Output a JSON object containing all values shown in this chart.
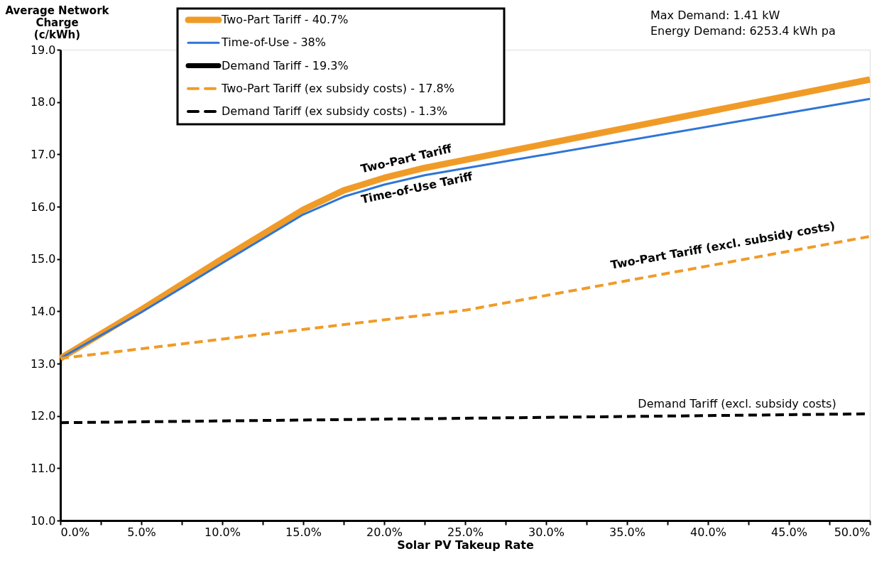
{
  "chart_data": {
    "type": "line",
    "xlabel": "Solar PV Takeup Rate",
    "ylabel": "Average Network Charge (c/kWh)",
    "xlim": [
      0,
      50
    ],
    "ylim": [
      10,
      19
    ],
    "xticks": [
      {
        "value": 0,
        "label": "0.0%"
      },
      {
        "value": 2.5,
        "label": null
      },
      {
        "value": 5,
        "label": "5.0%"
      },
      {
        "value": 7.5,
        "label": null
      },
      {
        "value": 10,
        "label": "10.0%"
      },
      {
        "value": 12.5,
        "label": null
      },
      {
        "value": 15,
        "label": "15.0%"
      },
      {
        "value": 17.5,
        "label": null
      },
      {
        "value": 20,
        "label": "20.0%"
      },
      {
        "value": 22.5,
        "label": null
      },
      {
        "value": 25,
        "label": "25.0%"
      },
      {
        "value": 27.5,
        "label": null
      },
      {
        "value": 30,
        "label": "30.0%"
      },
      {
        "value": 32.5,
        "label": null
      },
      {
        "value": 35,
        "label": "35.0%"
      },
      {
        "value": 37.5,
        "label": null
      },
      {
        "value": 40,
        "label": "40.0%"
      },
      {
        "value": 42.5,
        "label": null
      },
      {
        "value": 45,
        "label": "45.0%"
      },
      {
        "value": 47.5,
        "label": null
      },
      {
        "value": 50,
        "label": "50.0%"
      }
    ],
    "yticks": [
      {
        "value": 10,
        "label": "10.0"
      },
      {
        "value": 11,
        "label": "11.0"
      },
      {
        "value": 12,
        "label": "12.0"
      },
      {
        "value": 13,
        "label": "13.0"
      },
      {
        "value": 14,
        "label": "14.0"
      },
      {
        "value": 15,
        "label": "15.0"
      },
      {
        "value": 16,
        "label": "16.0"
      },
      {
        "value": 17,
        "label": "17.0"
      },
      {
        "value": 18,
        "label": "18.0"
      },
      {
        "value": 19,
        "label": "19.0"
      }
    ],
    "grid": false,
    "legend": "top",
    "marker": "none",
    "series": [
      {
        "name": "Two-Part Tariff - 40.7%",
        "color": "#f09b28",
        "line_style": "solid",
        "x": [
          0,
          5,
          10,
          15,
          17.5,
          20,
          22.5,
          50
        ],
        "values": [
          13.1,
          14.03,
          15.0,
          15.94,
          16.31,
          16.55,
          16.74,
          18.43
        ]
      },
      {
        "name": "Time-of-Use - 38%",
        "color": "#2e75d6",
        "line_style": "solid",
        "x": [
          0,
          5,
          10,
          15,
          17.5,
          20,
          22.5,
          50
        ],
        "values": [
          13.1,
          13.98,
          14.92,
          15.85,
          16.19,
          16.42,
          16.6,
          18.06
        ]
      },
      {
        "name": "Demand Tariff - 19.3%",
        "color": "#000000",
        "line_style": "solid"
      },
      {
        "name": "Two-Part Tariff (ex subsidy costs) - 17.8%",
        "color": "#f09b28",
        "line_style": "dashed",
        "x": [
          0,
          25,
          50
        ],
        "values": [
          13.1,
          14.02,
          15.43
        ]
      },
      {
        "name": "Demand Tariff (ex subsidy costs) - 1.3%",
        "color": "#000000",
        "line_style": "dashed",
        "x": [
          0,
          50
        ],
        "values": [
          11.87,
          12.04
        ]
      }
    ],
    "annotations": [
      "Two-Part Tariff",
      "Time-of-Use Tariff",
      "Two-Part Tariff (excl. subsidy costs)",
      "Demand Tariff (excl. subsidy costs)",
      "Max Demand:      1.41 kW",
      "Energy Demand:  6253.4 kWh pa"
    ]
  }
}
